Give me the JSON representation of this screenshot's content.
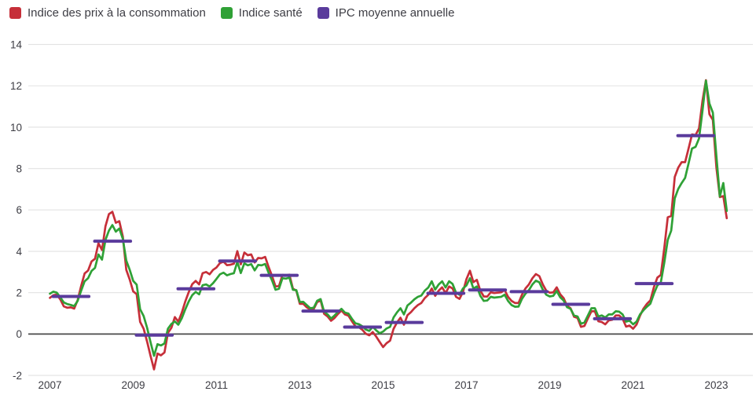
{
  "chart_data": {
    "type": "line",
    "title": "",
    "frequency": "monthly",
    "x_start": "2007-01",
    "x_end": "2023-04",
    "x_axis": {
      "tick_labels": [
        "2007",
        "2009",
        "2011",
        "2013",
        "2015",
        "2017",
        "2019",
        "2021",
        "2023"
      ],
      "start_year": 2007
    },
    "y_axis": {
      "ticks": [
        14,
        12,
        10,
        8,
        6,
        4,
        2,
        0,
        -2
      ],
      "min": -2,
      "max": 14
    },
    "grid": true,
    "legend_position": "top-left",
    "series": [
      {
        "name": "Indice des prix à la consommation",
        "color": "#c62f39",
        "type": "line",
        "values": [
          1.75,
          1.88,
          1.91,
          1.67,
          1.34,
          1.27,
          1.29,
          1.23,
          1.64,
          2.33,
          2.93,
          3.07,
          3.51,
          3.64,
          4.39,
          4.06,
          5.21,
          5.8,
          5.91,
          5.38,
          5.46,
          4.71,
          3.1,
          2.63,
          2.06,
          1.93,
          0.59,
          0.26,
          -0.37,
          -1.06,
          -1.71,
          -0.94,
          -1.03,
          -0.89,
          0.06,
          0.3,
          0.82,
          0.6,
          1.03,
          1.58,
          2.03,
          2.41,
          2.57,
          2.4,
          2.94,
          3.0,
          2.89,
          3.1,
          3.22,
          3.43,
          3.5,
          3.33,
          3.35,
          3.4,
          4.01,
          3.37,
          3.94,
          3.81,
          3.85,
          3.46,
          3.68,
          3.66,
          3.73,
          3.24,
          2.81,
          2.3,
          2.32,
          2.86,
          2.84,
          2.87,
          2.2,
          2.09,
          1.46,
          1.46,
          1.29,
          1.18,
          1.21,
          1.55,
          1.62,
          0.98,
          0.85,
          0.64,
          0.78,
          0.97,
          1.14,
          0.95,
          0.89,
          0.62,
          0.38,
          0.33,
          0.21,
          0.02,
          -0.06,
          0.1,
          -0.12,
          -0.38,
          -0.63,
          -0.44,
          -0.32,
          0.25,
          0.56,
          0.79,
          0.45,
          0.91,
          1.06,
          1.25,
          1.4,
          1.5,
          1.74,
          1.9,
          2.2,
          1.85,
          2.1,
          2.26,
          1.98,
          2.3,
          2.2,
          1.8,
          1.7,
          2.03,
          2.65,
          3.06,
          2.51,
          2.62,
          2.1,
          1.82,
          1.81,
          2.02,
          1.98,
          2.0,
          2.02,
          2.13,
          1.8,
          1.6,
          1.5,
          1.5,
          1.9,
          2.2,
          2.4,
          2.7,
          2.9,
          2.8,
          2.4,
          2.1,
          2.0,
          2.01,
          2.26,
          1.93,
          1.74,
          1.36,
          1.25,
          0.84,
          0.78,
          0.35,
          0.39,
          0.76,
          1.1,
          1.1,
          0.62,
          0.58,
          0.47,
          0.66,
          0.69,
          0.9,
          0.9,
          0.74,
          0.36,
          0.41,
          0.26,
          0.46,
          0.89,
          1.23,
          1.46,
          1.63,
          2.27,
          2.73,
          2.86,
          4.16,
          5.64,
          5.71,
          7.59,
          8.04,
          8.31,
          8.31,
          8.97,
          9.65,
          9.62,
          9.94,
          11.27,
          12.27,
          10.63,
          10.35,
          8.05,
          6.62,
          6.67,
          5.6
        ]
      },
      {
        "name": "Indice santé",
        "color": "#2fa136",
        "type": "line",
        "values": [
          1.95,
          2.05,
          2.0,
          1.77,
          1.53,
          1.45,
          1.41,
          1.35,
          1.6,
          2.1,
          2.55,
          2.7,
          3.05,
          3.2,
          3.85,
          3.6,
          4.55,
          5.0,
          5.27,
          4.95,
          5.1,
          4.6,
          3.55,
          3.1,
          2.57,
          2.39,
          1.2,
          0.87,
          0.3,
          -0.4,
          -1.05,
          -0.49,
          -0.55,
          -0.45,
          0.26,
          0.49,
          0.61,
          0.45,
          0.76,
          1.2,
          1.58,
          1.88,
          2.04,
          1.92,
          2.36,
          2.4,
          2.3,
          2.46,
          2.67,
          2.89,
          2.97,
          2.84,
          2.9,
          2.94,
          3.49,
          2.95,
          3.42,
          3.32,
          3.38,
          3.08,
          3.34,
          3.32,
          3.39,
          2.96,
          2.59,
          2.14,
          2.19,
          2.7,
          2.68,
          2.73,
          2.14,
          2.12,
          1.55,
          1.56,
          1.4,
          1.25,
          1.27,
          1.61,
          1.69,
          1.08,
          0.95,
          0.75,
          0.9,
          1.07,
          1.22,
          1.04,
          0.99,
          0.74,
          0.52,
          0.48,
          0.38,
          0.22,
          0.15,
          0.35,
          0.18,
          0.04,
          0.12,
          0.27,
          0.35,
          0.8,
          1.05,
          1.25,
          0.95,
          1.38,
          1.52,
          1.68,
          1.8,
          1.86,
          2.1,
          2.25,
          2.55,
          2.15,
          2.4,
          2.55,
          2.25,
          2.55,
          2.42,
          2.0,
          1.9,
          2.2,
          2.35,
          2.7,
          2.2,
          2.3,
          1.85,
          1.6,
          1.62,
          1.8,
          1.76,
          1.78,
          1.8,
          1.9,
          1.6,
          1.4,
          1.32,
          1.33,
          1.7,
          1.95,
          2.12,
          2.4,
          2.58,
          2.5,
          2.15,
          1.9,
          1.82,
          1.85,
          2.08,
          1.78,
          1.62,
          1.3,
          1.22,
          0.9,
          0.85,
          0.5,
          0.56,
          0.9,
          1.25,
          1.25,
          0.85,
          0.9,
          0.8,
          0.95,
          0.95,
          1.1,
          1.08,
          0.95,
          0.6,
          0.65,
          0.47,
          0.6,
          0.95,
          1.15,
          1.32,
          1.47,
          1.95,
          2.35,
          2.5,
          3.45,
          4.55,
          5.0,
          6.56,
          7.01,
          7.3,
          7.55,
          8.25,
          8.97,
          9.05,
          9.45,
          10.79,
          12.25,
          11.15,
          10.7,
          8.6,
          6.65,
          7.3,
          5.95
        ]
      },
      {
        "name": "IPC moyenne annuelle",
        "color": "#5a3b9c",
        "type": "annual-average-segments",
        "years": [
          2007,
          2008,
          2009,
          2010,
          2011,
          2012,
          2013,
          2014,
          2015,
          2016,
          2017,
          2018,
          2019,
          2020,
          2021,
          2022
        ],
        "values": [
          1.82,
          4.49,
          -0.05,
          2.19,
          3.53,
          2.84,
          1.11,
          0.34,
          0.56,
          1.97,
          2.13,
          2.05,
          1.44,
          0.74,
          2.44,
          9.59
        ]
      }
    ]
  },
  "colors": {
    "grid_line": "#e2e2e2",
    "zero_line": "#4a4a4a",
    "axis_text": "#3d3d44",
    "background": "#ffffff"
  }
}
